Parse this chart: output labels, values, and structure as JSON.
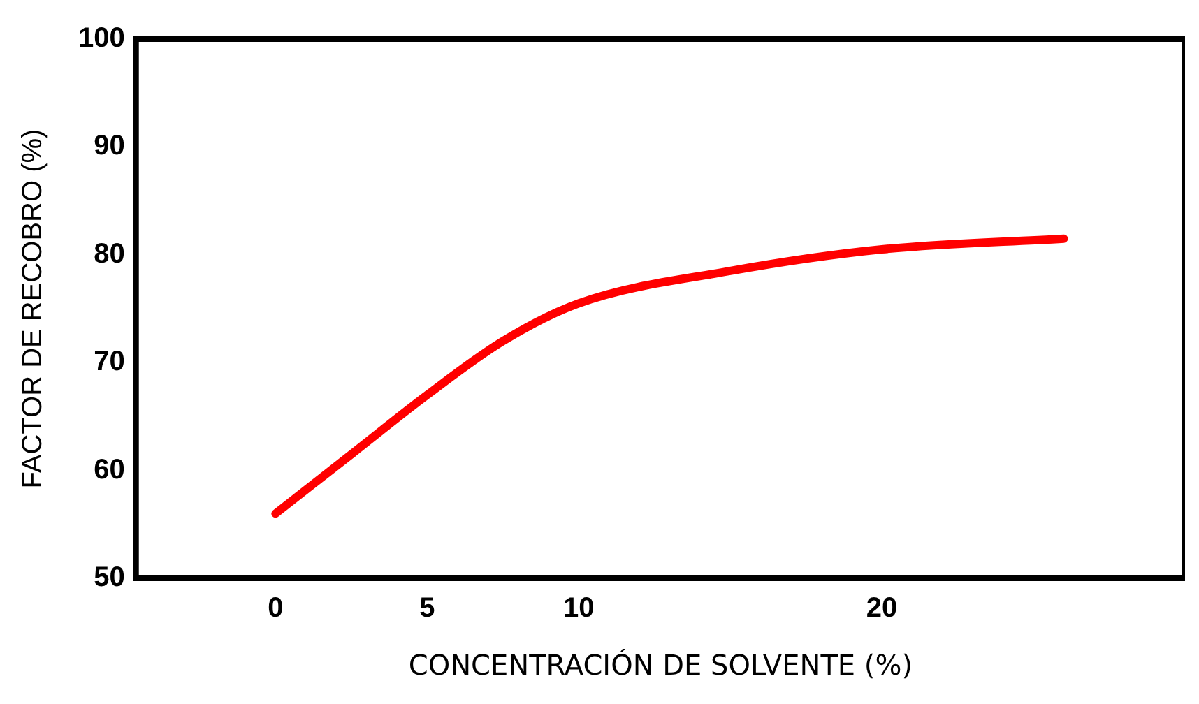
{
  "chart_data": {
    "type": "line",
    "xlabel": "CONCENTRACIÓN DE SOLVENTE (%)",
    "ylabel": "FACTOR DE RECOBRO (%)",
    "x": [
      0,
      2.5,
      5,
      7.5,
      10,
      15,
      20,
      26
    ],
    "series": [
      {
        "color": "#ff0000",
        "values": [
          56,
          61.5,
          67,
          72,
          75.5,
          78.5,
          80.5,
          81.5
        ]
      }
    ],
    "xlim": [
      -4.6,
      30
    ],
    "xticks": [
      0,
      5,
      10,
      20
    ],
    "ylim": [
      50,
      100
    ],
    "yticks": [
      50,
      60,
      70,
      80,
      90,
      100
    ],
    "grid": false,
    "legend": false,
    "marker": "none",
    "line_style": "solid"
  }
}
